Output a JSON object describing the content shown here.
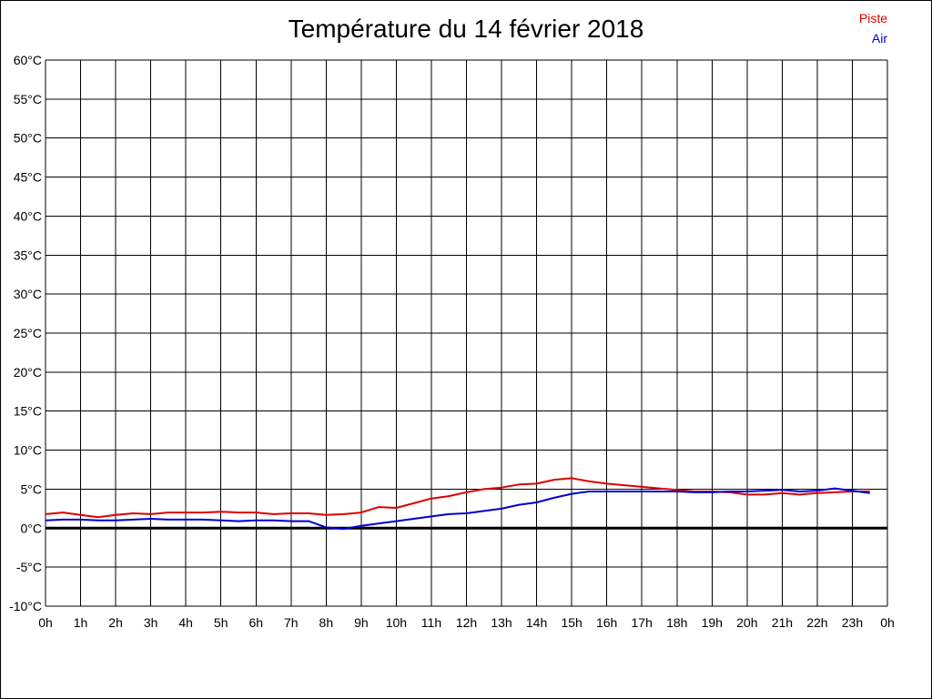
{
  "chart_data": {
    "type": "line",
    "title": "Température du 14 février 2018",
    "xlabel": "",
    "ylabel": "",
    "ylim": [
      -10,
      60
    ],
    "xlim": [
      0,
      24
    ],
    "grid": true,
    "legend_position": "top-right",
    "y_ticks": [
      "60°C",
      "55°C",
      "50°C",
      "45°C",
      "40°C",
      "35°C",
      "30°C",
      "25°C",
      "20°C",
      "15°C",
      "10°C",
      "5°C",
      "0°C",
      "-5°C",
      "-10°C"
    ],
    "y_tick_values": [
      60,
      55,
      50,
      45,
      40,
      35,
      30,
      25,
      20,
      15,
      10,
      5,
      0,
      -5,
      -10
    ],
    "x_ticks": [
      "0h",
      "1h",
      "2h",
      "3h",
      "4h",
      "5h",
      "6h",
      "7h",
      "8h",
      "9h",
      "10h",
      "11h",
      "12h",
      "13h",
      "14h",
      "15h",
      "16h",
      "17h",
      "18h",
      "19h",
      "20h",
      "21h",
      "22h",
      "23h",
      "0h"
    ],
    "series": [
      {
        "name": "Piste",
        "color": "#dd0000",
        "x": [
          0,
          0.5,
          1,
          1.5,
          2,
          2.5,
          3,
          3.5,
          4,
          4.5,
          5,
          5.5,
          6,
          6.5,
          7,
          7.5,
          8,
          8.5,
          9,
          9.5,
          10,
          10.5,
          11,
          11.5,
          12,
          12.5,
          13,
          13.5,
          14,
          14.5,
          15,
          15.5,
          16,
          16.5,
          17,
          17.5,
          18,
          18.5,
          19,
          19.5,
          20,
          20.5,
          21,
          21.5,
          22,
          22.5,
          23,
          23.5
        ],
        "values": [
          1.8,
          2.0,
          1.7,
          1.4,
          1.7,
          1.9,
          1.8,
          2.0,
          2.0,
          2.0,
          2.1,
          2.0,
          2.0,
          1.8,
          1.9,
          1.9,
          1.7,
          1.8,
          2.0,
          2.7,
          2.6,
          3.2,
          3.8,
          4.1,
          4.6,
          5.0,
          5.2,
          5.6,
          5.7,
          6.2,
          6.4,
          6.0,
          5.7,
          5.5,
          5.3,
          5.1,
          4.9,
          4.7,
          4.7,
          4.6,
          4.3,
          4.3,
          4.5,
          4.3,
          4.5,
          4.6,
          4.7,
          4.7
        ]
      },
      {
        "name": "Air",
        "color": "#0000cc",
        "x": [
          0,
          0.5,
          1,
          1.5,
          2,
          2.5,
          3,
          3.5,
          4,
          4.5,
          5,
          5.5,
          6,
          6.5,
          7,
          7.5,
          8,
          8.5,
          9,
          9.5,
          10,
          10.5,
          11,
          11.5,
          12,
          12.5,
          13,
          13.5,
          14,
          14.5,
          15,
          15.5,
          16,
          16.5,
          17,
          17.5,
          18,
          18.5,
          19,
          19.5,
          20,
          20.5,
          21,
          21.5,
          22,
          22.5,
          23,
          23.5
        ],
        "values": [
          1.0,
          1.1,
          1.1,
          1.0,
          1.0,
          1.1,
          1.2,
          1.1,
          1.1,
          1.1,
          1.0,
          0.9,
          1.0,
          1.0,
          0.9,
          0.9,
          0.1,
          -0.1,
          0.3,
          0.6,
          0.9,
          1.2,
          1.5,
          1.8,
          1.9,
          2.2,
          2.5,
          3.0,
          3.3,
          3.9,
          4.4,
          4.7,
          4.7,
          4.7,
          4.7,
          4.7,
          4.7,
          4.6,
          4.6,
          4.7,
          4.7,
          4.8,
          4.9,
          4.7,
          4.8,
          5.1,
          4.8,
          4.5
        ]
      }
    ],
    "baseline_value": 0
  }
}
